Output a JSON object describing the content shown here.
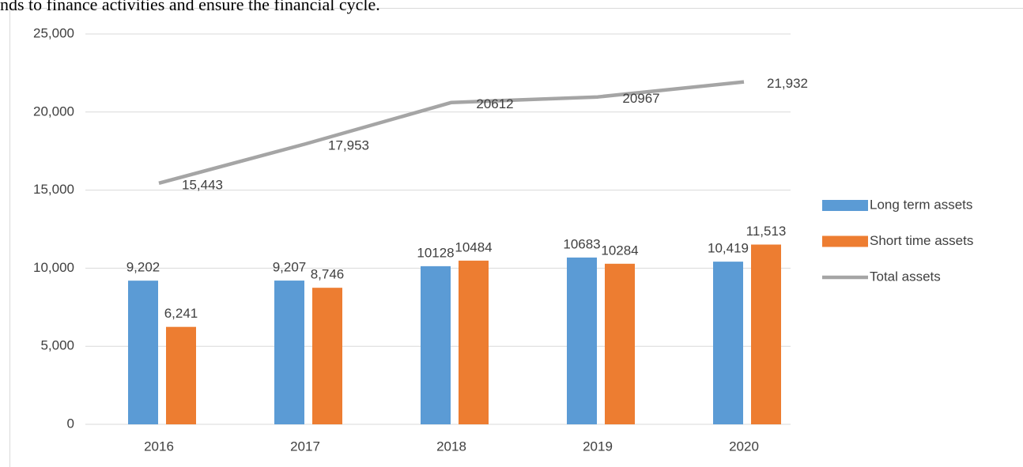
{
  "document_text": "nds to finance activities and ensure the financial cycle.",
  "chart_data": {
    "type": "bar_line",
    "categories": [
      "2016",
      "2017",
      "2018",
      "2019",
      "2020"
    ],
    "series": [
      {
        "name": "Long term assets",
        "type": "bar",
        "color": "#5b9bd5",
        "values": [
          9202,
          9207,
          10128,
          10683,
          10419
        ],
        "value_labels": [
          "9,202",
          "9,207",
          "10128",
          "10683",
          "10,419"
        ]
      },
      {
        "name": "Short time assets",
        "type": "bar",
        "color": "#ed7d31",
        "values": [
          6241,
          8746,
          10484,
          10284,
          11513
        ],
        "value_labels": [
          "6,241",
          "8,746",
          "10484",
          "10284",
          "11,513"
        ]
      },
      {
        "name": "Total assets",
        "type": "line",
        "color": "#a5a5a5",
        "values": [
          15443,
          17953,
          20612,
          20967,
          21932
        ],
        "value_labels": [
          "15,443",
          "17,953",
          "20612",
          "20967",
          "21,932"
        ]
      }
    ],
    "ylim": [
      0,
      25000
    ],
    "yticks": [
      0,
      {
        "value": 5000,
        "label": "5,000"
      },
      {
        "value": 10000,
        "label": "10,000"
      },
      {
        "value": 15000,
        "label": "15,000"
      },
      {
        "value": 20000,
        "label": "20,000"
      },
      {
        "value": 25000,
        "label": "25,000"
      }
    ],
    "grid": true,
    "legend": "right"
  }
}
